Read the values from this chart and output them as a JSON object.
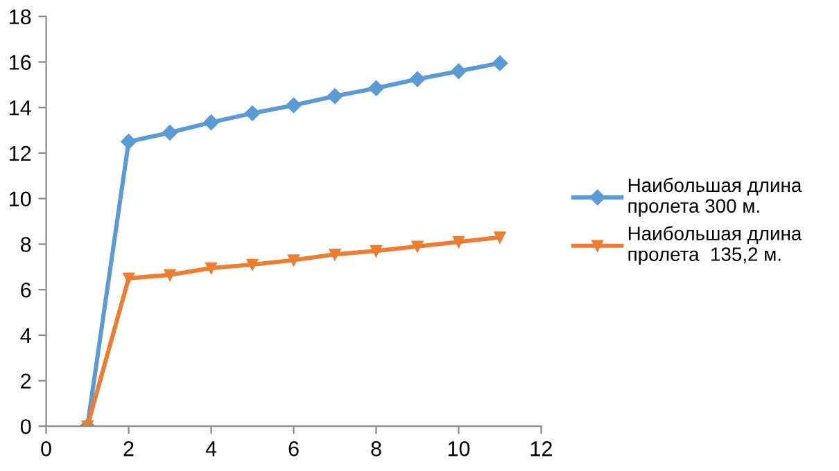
{
  "chart_data": {
    "type": "line",
    "x": [
      1,
      2,
      3,
      4,
      5,
      6,
      7,
      8,
      9,
      10,
      11
    ],
    "series": [
      {
        "name": "Наибольшая длина пролета 300 м.",
        "color": "#5b9bd5",
        "marker": "diamond",
        "values": [
          0,
          12.5,
          12.9,
          13.35,
          13.75,
          14.1,
          14.5,
          14.85,
          15.25,
          15.6,
          15.95
        ]
      },
      {
        "name": "Наибольшая длина пролета  135,2 м.",
        "color": "#ed7d31",
        "marker": "triangle",
        "values": [
          0,
          6.5,
          6.65,
          6.95,
          7.1,
          7.3,
          7.55,
          7.7,
          7.9,
          8.1,
          8.3
        ]
      }
    ],
    "xlim": [
      0,
      12
    ],
    "xticks": [
      0,
      2,
      4,
      6,
      8,
      10,
      12
    ],
    "ylim": [
      0,
      18
    ],
    "yticks": [
      0,
      2,
      4,
      6,
      8,
      10,
      12,
      14,
      16,
      18
    ],
    "grid": false,
    "legend": "right",
    "line_style": "solid"
  }
}
